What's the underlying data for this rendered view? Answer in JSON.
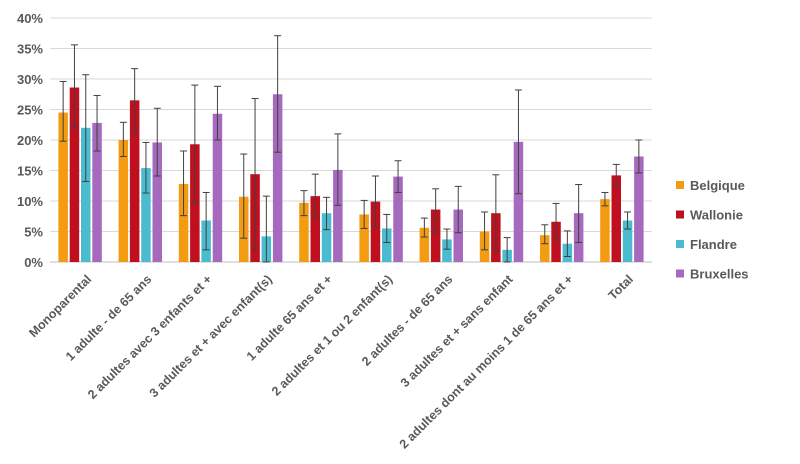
{
  "chart_data": {
    "type": "bar",
    "title": "",
    "xlabel": "",
    "ylabel": "",
    "ylim": [
      0,
      40
    ],
    "yticks": [
      "0%",
      "5%",
      "10%",
      "15%",
      "20%",
      "25%",
      "30%",
      "35%",
      "40%"
    ],
    "grid": true,
    "legend_position": "right",
    "categories": [
      "Monoparental",
      "1 adulte - de 65 ans",
      "2 adultes avec 3 enfants et +",
      "3 adultes et + avec enfant(s)",
      "1 adulte 65 ans et +",
      "2 adultes et 1 ou 2 enfant(s)",
      "2 adultes - de 65 ans",
      "3 adultes et + sans enfant",
      "2 adultes dont au moins 1 de 65 ans et +",
      "Total"
    ],
    "series": [
      {
        "name": "Belgique",
        "color": "#F39C12",
        "values": [
          24.5,
          20.0,
          12.8,
          10.7,
          9.7,
          7.8,
          5.6,
          5.0,
          4.4,
          10.3
        ],
        "err_low": [
          19.8,
          17.3,
          7.6,
          3.9,
          7.6,
          5.5,
          4.1,
          2.0,
          3.0,
          9.2
        ],
        "err_high": [
          29.6,
          22.9,
          18.2,
          17.7,
          11.7,
          10.1,
          7.2,
          8.2,
          6.1,
          11.4
        ]
      },
      {
        "name": "Wallonie",
        "color": "#C0101F",
        "values": [
          28.6,
          26.5,
          19.3,
          14.4,
          10.8,
          9.9,
          8.6,
          8.0,
          6.6,
          14.2
        ],
        "err_low": [
          22.0,
          21.3,
          9.6,
          2.0,
          7.2,
          5.8,
          4.9,
          1.8,
          3.6,
          12.4
        ],
        "err_high": [
          35.6,
          31.7,
          29.0,
          26.8,
          14.4,
          14.1,
          12.0,
          14.3,
          9.6,
          16.0
        ]
      },
      {
        "name": "Flandre",
        "color": "#4BBCCF",
        "values": [
          22.0,
          15.4,
          6.8,
          4.2,
          8.0,
          5.5,
          3.7,
          2.0,
          3.0,
          6.8
        ],
        "err_low": [
          13.2,
          11.3,
          2.0,
          0.0,
          5.3,
          3.2,
          2.1,
          0.0,
          0.9,
          5.4
        ],
        "err_high": [
          30.7,
          19.6,
          11.4,
          10.8,
          10.6,
          7.8,
          5.4,
          4.0,
          5.1,
          8.2
        ]
      },
      {
        "name": "Bruxelles",
        "color": "#A569BD",
        "values": [
          22.8,
          19.6,
          24.3,
          27.5,
          15.1,
          14.0,
          8.6,
          19.7,
          8.0,
          17.3
        ],
        "err_low": [
          18.2,
          14.1,
          20.0,
          18.0,
          9.3,
          11.4,
          4.8,
          11.2,
          3.2,
          14.6
        ],
        "err_high": [
          27.3,
          25.2,
          28.8,
          37.1,
          21.0,
          16.6,
          12.4,
          28.2,
          12.7,
          20.0
        ]
      }
    ]
  }
}
